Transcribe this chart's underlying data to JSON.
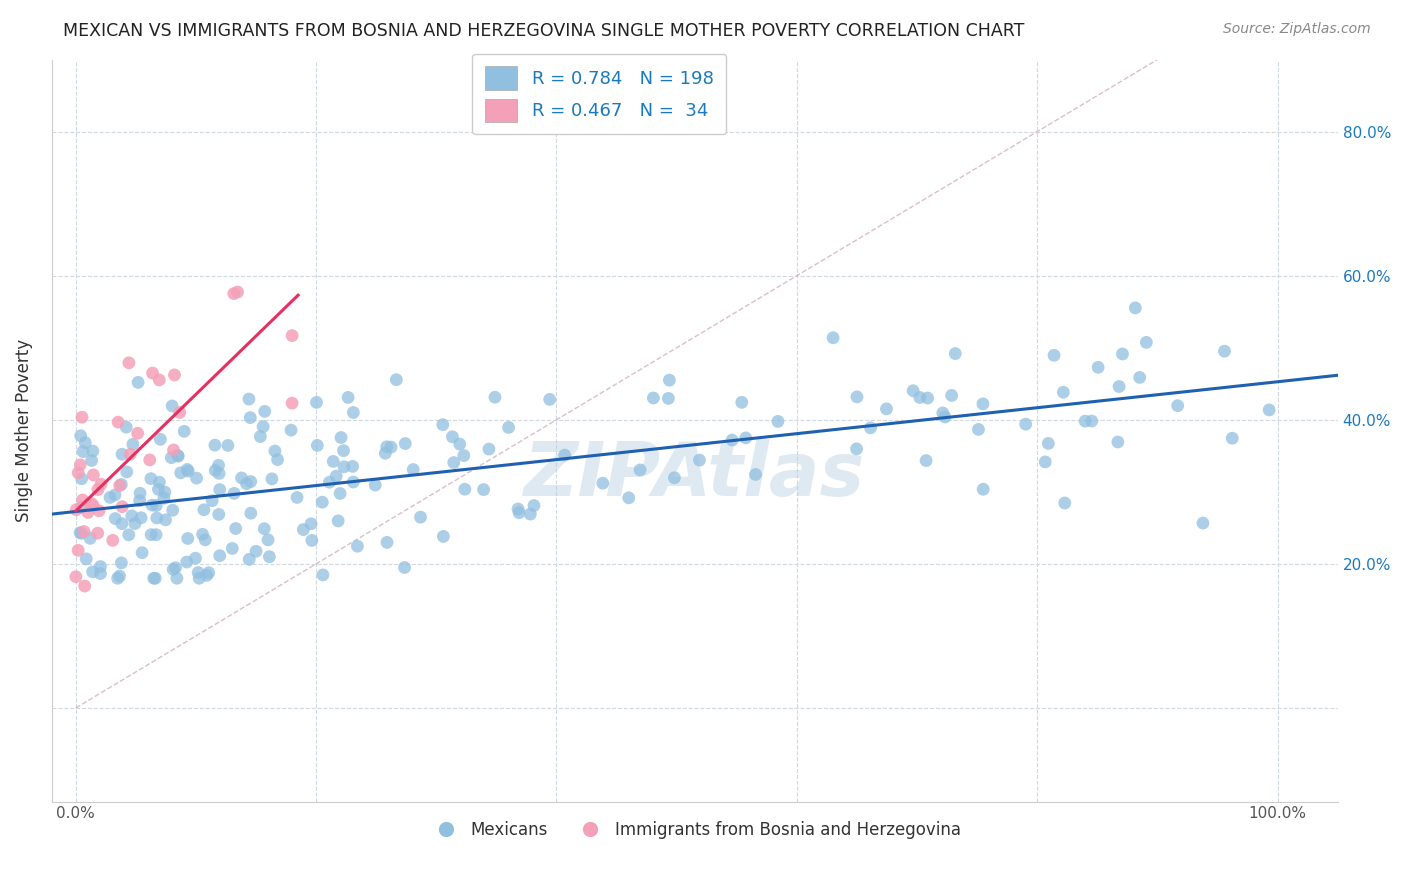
{
  "title": "MEXICAN VS IMMIGRANTS FROM BOSNIA AND HERZEGOVINA SINGLE MOTHER POVERTY CORRELATION CHART",
  "source": "Source: ZipAtlas.com",
  "ylabel": "Single Mother Poverty",
  "xlabel": "",
  "background_color": "#ffffff",
  "grid_color": "#d0d8e0",
  "blue_color": "#90bfe0",
  "pink_color": "#f4a0b8",
  "blue_line_color": "#2060b0",
  "pink_line_color": "#e83060",
  "diagonal_color": "#d0b0b8",
  "R_blue": 0.784,
  "N_blue": 198,
  "R_pink": 0.467,
  "N_pink": 34,
  "x_ticks": [
    0.0,
    0.2,
    0.4,
    0.6,
    0.8,
    1.0
  ],
  "y_ticks": [
    0.0,
    0.2,
    0.4,
    0.6,
    0.8
  ],
  "y_tick_labels_right": [
    "",
    "20.0%",
    "40.0%",
    "60.0%",
    "80.0%"
  ],
  "legend_blue_label": "Mexicans",
  "legend_pink_label": "Immigrants from Bosnia and Herzegovina",
  "watermark": "ZIPAtlas",
  "xlim": [
    -0.02,
    1.05
  ],
  "ylim": [
    -0.13,
    0.9
  ],
  "blue_intercept": 0.265,
  "blue_slope": 0.215,
  "pink_intercept": 0.27,
  "pink_slope": 1.8
}
